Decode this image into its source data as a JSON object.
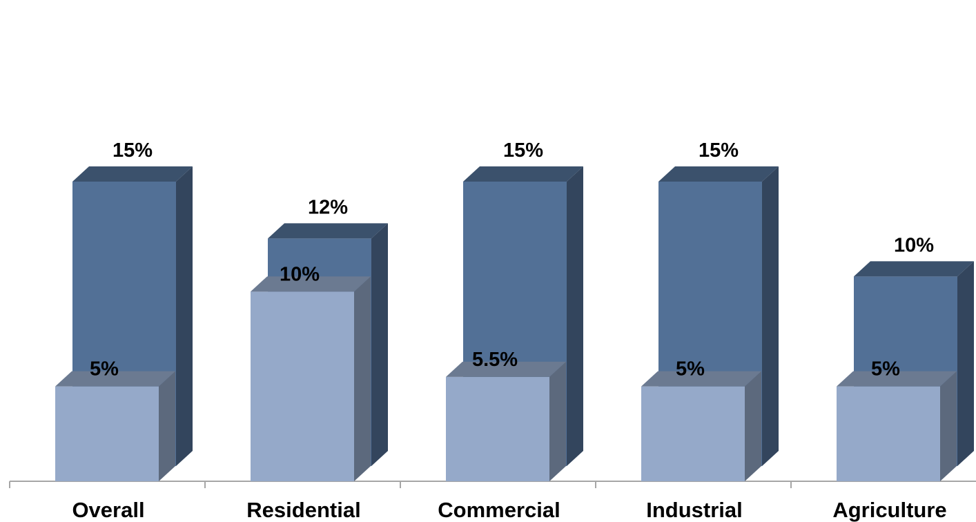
{
  "chart_data": {
    "type": "bar",
    "style": "3d-clustered",
    "categories": [
      "Overall",
      "Residential",
      "Commercial",
      "Industrial",
      "Agriculture"
    ],
    "series": [
      {
        "values": [
          5,
          10,
          5.5,
          5,
          5
        ],
        "labels": [
          "5%",
          "10%",
          "5.5%",
          "5%",
          "5%"
        ],
        "color": "#95A9C9"
      },
      {
        "values": [
          15,
          12,
          15,
          15,
          10
        ],
        "labels": [
          "15%",
          "12%",
          "15%",
          "15%",
          "10%"
        ],
        "color": "#527096"
      }
    ],
    "ylim": [
      0,
      15
    ],
    "grid": false,
    "legend": "none",
    "title": "",
    "xlabel": "",
    "ylabel": ""
  }
}
